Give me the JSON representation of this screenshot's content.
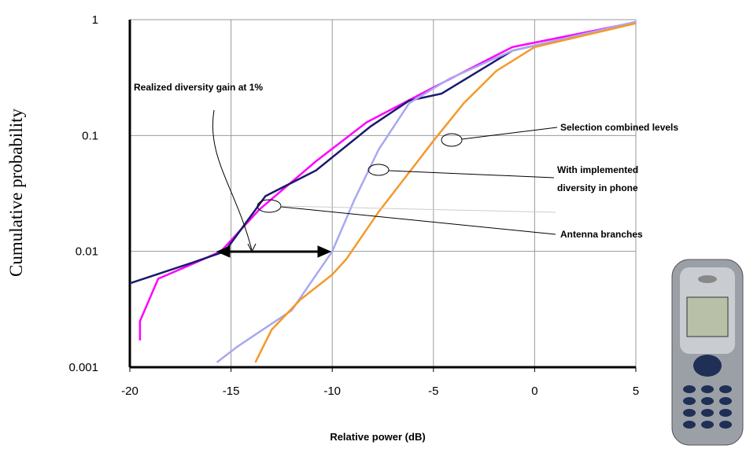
{
  "chart_data": {
    "type": "line",
    "yscale": "log",
    "grid": true,
    "xlabel": "Relative power (dB)",
    "ylabel": "Cumulative probability",
    "xlim": [
      -20,
      5
    ],
    "xticks": [
      -20,
      -15,
      -10,
      -5,
      0,
      5
    ],
    "ylim": [
      0.001,
      1
    ],
    "yticks": [
      1,
      0.1,
      0.01,
      0.001
    ],
    "annotations": {
      "gain": "Realized diversity gain at 1%",
      "selection": "Selection combined levels",
      "implemented": [
        "With implemented",
        "diversity in phone"
      ],
      "antenna": "Antenna branches"
    },
    "series": [
      {
        "color": "#ff00ff",
        "x": [
          -19.5,
          -19.5,
          -18.6,
          -16.9,
          -15.5,
          -13.6,
          -10.8,
          -8.3,
          -5,
          -1.1,
          5
        ],
        "values": [
          0.0017,
          0.0025,
          0.0058,
          0.0078,
          0.01,
          0.023,
          0.06,
          0.13,
          0.26,
          0.58,
          0.95
        ]
      },
      {
        "color": "#1a1a6e",
        "x": [
          -20,
          -16.9,
          -15.3,
          -13.3,
          -10.8,
          -8.1,
          -6.2,
          -4.6,
          -1.1,
          5
        ],
        "values": [
          0.0053,
          0.008,
          0.01,
          0.03,
          0.05,
          0.12,
          0.2,
          0.23,
          0.54,
          0.95
        ]
      },
      {
        "color": "#a8a8f0",
        "x": [
          -15.7,
          -14.7,
          -12,
          -10,
          -8.9,
          -7.7,
          -6.2,
          -4.2,
          -1.1,
          5
        ],
        "values": [
          0.0011,
          0.0015,
          0.0031,
          0.01,
          0.028,
          0.076,
          0.19,
          0.31,
          0.54,
          0.96
        ]
      },
      {
        "color": "#f39a2b",
        "x": [
          -13.8,
          -13,
          -11.6,
          -10,
          -9.3,
          -7.7,
          -6.2,
          -5,
          -3.5,
          -1.9,
          0,
          5
        ],
        "values": [
          0.0011,
          0.0021,
          0.0038,
          0.0063,
          0.0086,
          0.022,
          0.048,
          0.09,
          0.19,
          0.36,
          0.58,
          0.93
        ]
      }
    ]
  }
}
